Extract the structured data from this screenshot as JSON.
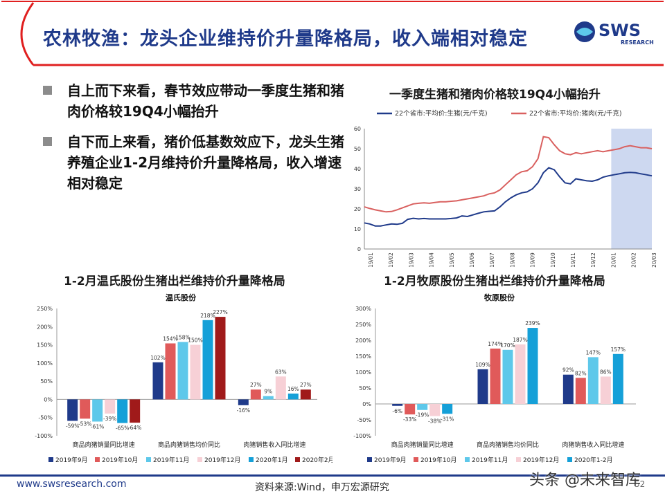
{
  "slide": {
    "title": "农林牧渔：龙头企业维持价升量降格局，收入端相对稳定",
    "logo_text": "SWS",
    "logo_sub": "RESEARCH",
    "colors": {
      "brand_blue": "#1f3a8a",
      "accent_red": "#e02020"
    }
  },
  "bullets": [
    "自上而下来看，春节效应带动一季度生猪和猪肉价格较19Q4小幅抬升",
    "自下而上来看，猪价低基数效应下，龙头生猪养殖企业1-2月维持价升量降格局，收入增速相对稳定"
  ],
  "charts_headings": {
    "line": "一季度生猪和猪肉价格较19Q4小幅抬升",
    "wens": "1-2月温氏股份生猪出栏维持价升量降格局",
    "muyuan": "1-2月牧原股份生猪出栏维持价升量降格局"
  },
  "footer": {
    "url": "www.swsresearch.com",
    "source": "资料来源:Wind，申万宏源研究",
    "page": "52",
    "watermark": "头条 @未来智库"
  },
  "chart_data": [
    {
      "type": "line",
      "ylim": [
        0,
        60
      ],
      "yticks": [
        "0",
        "10",
        "20",
        "30",
        "40",
        "50",
        "60"
      ],
      "xticks": [
        "19/01",
        "19/02",
        "19/03",
        "19/04",
        "19/05",
        "19/06",
        "19/07",
        "19/08",
        "19/09",
        "19/10",
        "19/11",
        "19/12",
        "20/01",
        "20/02",
        "20/03"
      ],
      "highlight_from": "20/01",
      "series": [
        {
          "name": "22个省市:平均价:生猪(元/千克)",
          "color": "#1f3a8a",
          "values": [
            13,
            12.5,
            11.5,
            11.5,
            12,
            12.5,
            12.3,
            12.8,
            14.8,
            15.3,
            15,
            15.2,
            15,
            15,
            15,
            15,
            15.2,
            15.5,
            16.5,
            16.2,
            17,
            17.8,
            18.5,
            18.8,
            19,
            21,
            23.5,
            25.5,
            27,
            28,
            28.5,
            30,
            33,
            38,
            40.5,
            39.5,
            36,
            33,
            32.5,
            35,
            34.5,
            34,
            33.8,
            34.5,
            35.8,
            36.5,
            37,
            37.5,
            38,
            38.2,
            38,
            37.5,
            37,
            36.5
          ]
        },
        {
          "name": "22个省市:平均价:猪肉(元/千克)",
          "color": "#d9605f",
          "values": [
            21,
            20.2,
            19.5,
            19,
            18.5,
            18.7,
            19.5,
            20.5,
            21.5,
            22.5,
            22.8,
            23,
            22.8,
            23.2,
            23.5,
            23.5,
            23.8,
            24,
            24.5,
            25,
            25.5,
            26,
            26.5,
            27.5,
            28,
            29.5,
            32,
            34.5,
            37,
            38.5,
            39,
            41,
            45,
            56,
            55.5,
            52,
            49,
            47.5,
            47,
            48,
            47.5,
            48,
            48.5,
            49,
            48.5,
            49,
            49.5,
            50,
            51,
            51.5,
            51,
            50.5,
            50.5,
            50
          ]
        }
      ]
    },
    {
      "type": "bar",
      "title": "温氏股份",
      "ylim": [
        -100,
        250
      ],
      "yticks": [
        "250%",
        "200%",
        "150%",
        "100%",
        "50%",
        "0%",
        "-50%",
        "-100%"
      ],
      "categories": [
        "商品肉猪销量同比增速",
        "商品肉猪销售均价同比",
        "肉猪销售收入同比增速"
      ],
      "series": [
        {
          "name": "2019年9月",
          "color": "#1f3a8a",
          "values": [
            -59,
            102,
            -16
          ]
        },
        {
          "name": "2019年10月",
          "color": "#e05a5a",
          "values": [
            -53,
            154,
            27
          ]
        },
        {
          "name": "2019年11月",
          "color": "#5ec8ea",
          "values": [
            -61,
            158,
            9
          ]
        },
        {
          "name": "2019年12月",
          "color": "#f7d0d6",
          "values": [
            -39,
            150,
            63
          ]
        },
        {
          "name": "2020年1月",
          "color": "#15a0d8",
          "values": [
            -65,
            218,
            16
          ]
        },
        {
          "name": "2020年2月",
          "color": "#a01a1a",
          "values": [
            -64,
            227,
            27
          ]
        }
      ],
      "labels": [
        [
          "-59%",
          "-53%",
          "-61%",
          "-39%",
          "-65%",
          "-64%"
        ],
        [
          "102%",
          "154%",
          "158%",
          "150%",
          "218%",
          "227%"
        ],
        [
          "-16%",
          "27%",
          "9%",
          "63%",
          "16%",
          "27%"
        ]
      ]
    },
    {
      "type": "bar",
      "title": "牧原股份",
      "ylim": [
        -100,
        300
      ],
      "yticks": [
        "300%",
        "250%",
        "200%",
        "150%",
        "100%",
        "50%",
        "0%",
        "-50%",
        "-100%"
      ],
      "categories": [
        "商品肉猪销量同比增速",
        "商品肉猪销售均价同比",
        "肉猪销售收入同比增速"
      ],
      "series": [
        {
          "name": "2019年9月",
          "color": "#1f3a8a",
          "values": [
            -6,
            109,
            92
          ]
        },
        {
          "name": "2019年10月",
          "color": "#e05a5a",
          "values": [
            -33,
            174,
            82
          ]
        },
        {
          "name": "2019年11月",
          "color": "#5ec8ea",
          "values": [
            -19,
            170,
            147
          ]
        },
        {
          "name": "2019年12月",
          "color": "#f7d0d6",
          "values": [
            -38,
            187,
            86
          ]
        },
        {
          "name": "2020年1-2月",
          "color": "#15a0d8",
          "values": [
            -31,
            239,
            157
          ]
        }
      ],
      "labels": [
        [
          "-6%",
          "-33%",
          "-19%",
          "-38%",
          "-31%"
        ],
        [
          "109%",
          "174%",
          "170%",
          "187%",
          "239%"
        ],
        [
          "92%",
          "82%",
          "147%",
          "86%",
          "157%"
        ]
      ]
    }
  ]
}
